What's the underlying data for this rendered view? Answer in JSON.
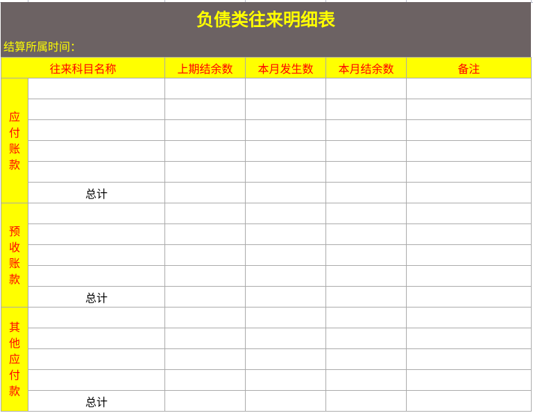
{
  "title": "负债类往来明细表",
  "period_label": "结算所属时间：",
  "colors": {
    "banner": "#6c6263",
    "header_bg": "#ffff00",
    "header_text": "#ff0000",
    "title_text": "#ffff00"
  },
  "columns": [
    "往来科目名称",
    "上期结余数",
    "本月发生数",
    "本月结余数",
    "备注"
  ],
  "groups": [
    {
      "label": "应付账款",
      "rows": 5,
      "total_label": "总计"
    },
    {
      "label": "预收账款",
      "rows": 4,
      "total_label": "总计"
    },
    {
      "label": "其他应付款",
      "rows": 4,
      "total_label": "总计"
    }
  ]
}
